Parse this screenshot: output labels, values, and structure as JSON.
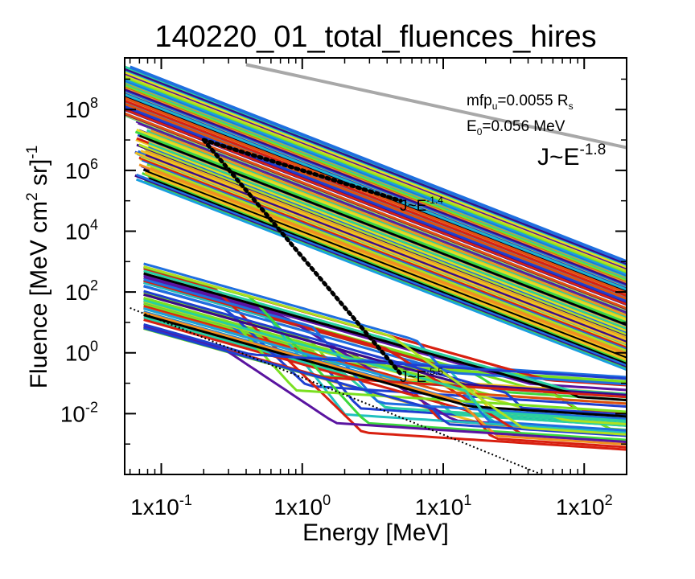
{
  "chart_data": {
    "type": "line",
    "title": "140220_01_total_fluences_hires",
    "xlabel": "Energy [MeV]",
    "ylabel": {
      "main": "Fluence [MeV cm",
      "sup1": "2",
      "mid": " sr]",
      "sup2": "-1"
    },
    "xscale": "log",
    "yscale": "log",
    "xlim": [
      0.055,
      200
    ],
    "ylim": [
      0.0001,
      5000000000
    ],
    "x_ticks": [
      {
        "value": 0.1,
        "base": "1x10",
        "exp": "-1"
      },
      {
        "value": 1,
        "base": "1x10",
        "exp": "0"
      },
      {
        "value": 10,
        "base": "1x10",
        "exp": "1"
      },
      {
        "value": 100,
        "base": "1x10",
        "exp": "2"
      }
    ],
    "y_ticks": [
      {
        "value": 0.01,
        "base": "10",
        "exp": "-2"
      },
      {
        "value": 1,
        "base": "10",
        "exp": "0"
      },
      {
        "value": 100,
        "base": "10",
        "exp": "2"
      },
      {
        "value": 10000,
        "base": "10",
        "exp": "4"
      },
      {
        "value": 1000000,
        "base": "10",
        "exp": "6"
      },
      {
        "value": 100000000,
        "base": "10",
        "exp": "8"
      }
    ],
    "annotations": {
      "mfp": {
        "text": "mfp",
        "sub": "u",
        "rest": "=0.0055 R",
        "sub2": "s"
      },
      "e0": {
        "text": "E",
        "sub": "0",
        "rest": "=0.056 MeV"
      },
      "ref_main": {
        "base": "J~E",
        "exp": "-1.8"
      },
      "ref_14": {
        "base": "J~E",
        "exp": "-1.4"
      },
      "ref_55": {
        "base": "J~E",
        "exp": "-5.5"
      }
    },
    "reference_lines": [
      {
        "kind": "power_law",
        "index": -1.8,
        "points": [
          [
            0.4,
            3000000000
          ],
          [
            200,
            5600000
          ]
        ],
        "color": "#a8a8a8"
      },
      {
        "kind": "power_law",
        "index": -1.8,
        "points": [
          [
            0.06,
            2500000000
          ],
          [
            200,
            1000
          ]
        ],
        "color": "#1f6fe0"
      },
      {
        "kind": "power_law_dotted",
        "index": -1.4,
        "points": [
          [
            0.2,
            10000000
          ],
          [
            5,
            100000
          ]
        ],
        "color": "#000000"
      },
      {
        "kind": "power_law_dotted",
        "index": -5.5,
        "points": [
          [
            0.2,
            10000000
          ],
          [
            5,
            0.2
          ]
        ],
        "color": "#000000"
      },
      {
        "kind": "lower_dotted",
        "index": -1.8,
        "points": [
          [
            0.06,
            30
          ],
          [
            50,
            0.0001
          ]
        ],
        "color": "#000000"
      }
    ],
    "palette": [
      "#3a0a8a",
      "#5a14a0",
      "#1f3fd0",
      "#1f6fe0",
      "#1a9fe0",
      "#20c0c0",
      "#28d0a0",
      "#3cd83c",
      "#7ae020",
      "#b0e020",
      "#e0e020",
      "#f0c020",
      "#f09020",
      "#e05010",
      "#d82010",
      "#000000"
    ],
    "series_summary": {
      "straight_lines_count": 110,
      "straight_index": -1.8,
      "straight_y_at_200_range": [
        0.3,
        1000
      ],
      "curved_lines_count": 48
    }
  }
}
